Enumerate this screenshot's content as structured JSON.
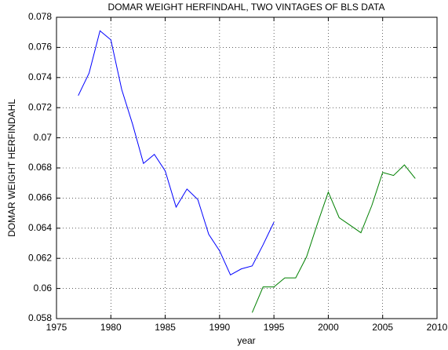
{
  "chart_data": {
    "type": "line",
    "title": "DOMAR WEIGHT HERFINDAHL, TWO VINTAGES OF BLS DATA",
    "xlabel": "year",
    "ylabel": "DOMAR WEIGHT HERFINDAHL",
    "series": [
      {
        "color": "#0000ff",
        "x": [
          1977,
          1978,
          1979,
          1980,
          1981,
          1982,
          1983,
          1984,
          1985,
          1986,
          1987,
          1988,
          1989,
          1990,
          1991,
          1992,
          1993,
          1994,
          1995
        ],
        "values": [
          0.0728,
          0.0743,
          0.0771,
          0.0765,
          0.0732,
          0.0709,
          0.0683,
          0.0689,
          0.0678,
          0.0654,
          0.0666,
          0.0659,
          0.0636,
          0.0625,
          0.0609,
          0.0613,
          0.0615,
          0.0629,
          0.0644
        ]
      },
      {
        "color": "#008000",
        "x": [
          1993,
          1994,
          1995,
          1996,
          1997,
          1998,
          1999,
          2000,
          2001,
          2002,
          2003,
          2004,
          2005,
          2006,
          2007,
          2008
        ],
        "values": [
          0.0584,
          0.0601,
          0.0601,
          0.0607,
          0.0607,
          0.0621,
          0.0643,
          0.0664,
          0.0647,
          0.0642,
          0.0637,
          0.0655,
          0.0677,
          0.0675,
          0.0682,
          0.0673
        ]
      }
    ],
    "xlim": [
      1975,
      2010
    ],
    "xticks": [
      1975,
      1980,
      1985,
      1990,
      1995,
      2000,
      2005,
      2010
    ],
    "ylim": [
      0.058,
      0.078
    ],
    "yticks": [
      0.058,
      0.06,
      0.062,
      0.064,
      0.066,
      0.068,
      0.07,
      0.072,
      0.074,
      0.076,
      0.078
    ],
    "grid": true
  }
}
